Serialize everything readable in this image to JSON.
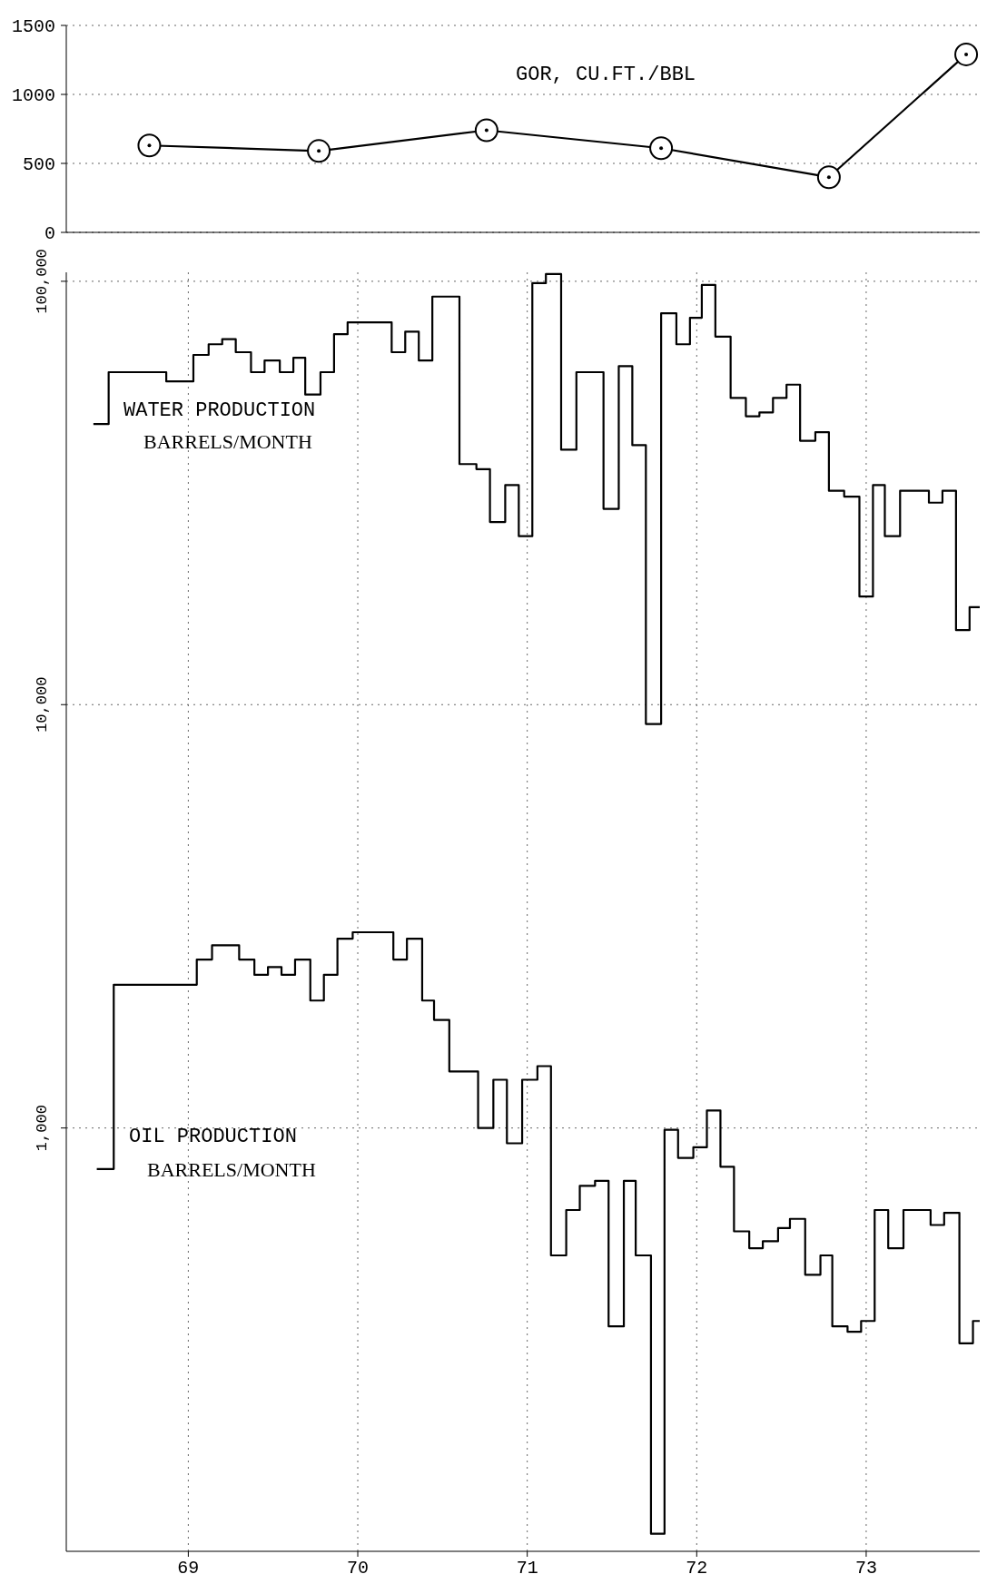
{
  "chart_data": [
    {
      "type": "line",
      "xlim": [
        68.28,
        73.67
      ],
      "xticks": [
        69,
        70,
        71,
        72,
        73
      ],
      "ylim": [
        0,
        1500
      ],
      "yticks": [
        0,
        500,
        1000,
        1500
      ],
      "grid": true,
      "marker": "circle",
      "line_style": "solid",
      "tick_labels": "y",
      "series": [
        {
          "name": "GOR, CU.FT./BBL",
          "color": "#000000",
          "x": [
            68.77,
            69.77,
            70.76,
            71.79,
            72.78,
            73.59
          ],
          "values": [
            630,
            590,
            740,
            610,
            400,
            1290
          ]
        }
      ]
    },
    {
      "type": "step",
      "xlim": [
        68.28,
        73.67
      ],
      "xticks": [
        69,
        70,
        71,
        72,
        73
      ],
      "ylim": [
        100,
        105000
      ],
      "yticks": [
        {
          "value": 1000,
          "label": "1,000"
        },
        {
          "value": 10000,
          "label": "10,000"
        },
        {
          "value": 100000,
          "label": "100,000"
        }
      ],
      "log": true,
      "grid": true,
      "marker": "none",
      "line_style": "solid",
      "annotations": [
        "BARRELS/MONTH",
        "BARRELS/MONTH"
      ],
      "series": [
        {
          "name": "WATER PRODUCTION",
          "color": "#000000",
          "x": [
            68.44,
            68.53,
            68.87,
            69.03,
            69.12,
            69.2,
            69.28,
            69.37,
            69.45,
            69.54,
            69.62,
            69.69,
            69.78,
            69.86,
            69.94,
            70.2,
            70.28,
            70.36,
            70.44,
            70.6,
            70.7,
            70.78,
            70.87,
            70.95,
            71.03,
            71.11,
            71.2,
            71.29,
            71.45,
            71.54,
            71.62,
            71.7,
            71.79,
            71.88,
            71.96,
            72.03,
            72.11,
            72.2,
            72.29,
            72.37,
            72.45,
            72.53,
            72.61,
            72.7,
            72.78,
            72.87,
            72.96,
            73.04,
            73.11,
            73.2,
            73.37,
            73.45,
            73.53,
            73.61,
            73.67
          ],
          "values": [
            46000,
            61000,
            58000,
            67000,
            71000,
            73000,
            68000,
            61000,
            65000,
            61000,
            66000,
            54000,
            61000,
            75000,
            80000,
            68000,
            76000,
            65000,
            92000,
            37000,
            36000,
            27000,
            33000,
            25000,
            99000,
            104000,
            40000,
            61000,
            29000,
            63000,
            41000,
            9000,
            84000,
            71000,
            82000,
            98000,
            74000,
            53000,
            48000,
            49000,
            53000,
            57000,
            42000,
            44000,
            32000,
            31000,
            18000,
            33000,
            25000,
            32000,
            30000,
            32000,
            15000,
            17000,
            17000
          ]
        },
        {
          "name": "OIL PRODUCTION",
          "color": "#000000",
          "x": [
            68.46,
            68.56,
            69.05,
            69.14,
            69.3,
            69.39,
            69.47,
            69.55,
            69.63,
            69.72,
            69.8,
            69.88,
            69.97,
            70.21,
            70.29,
            70.38,
            70.45,
            70.54,
            70.71,
            70.8,
            70.88,
            70.97,
            71.06,
            71.14,
            71.23,
            71.31,
            71.4,
            71.48,
            71.57,
            71.64,
            71.73,
            71.81,
            71.89,
            71.98,
            72.06,
            72.14,
            72.22,
            72.31,
            72.39,
            72.48,
            72.55,
            72.64,
            72.73,
            72.8,
            72.89,
            72.97,
            73.05,
            73.13,
            73.22,
            73.38,
            73.46,
            73.55,
            73.63,
            73.67
          ],
          "values": [
            800,
            2180,
            2500,
            2700,
            2500,
            2300,
            2400,
            2300,
            2500,
            2000,
            2300,
            2800,
            2900,
            2500,
            2800,
            2000,
            1800,
            1360,
            1000,
            1300,
            920,
            1300,
            1400,
            500,
            640,
            730,
            750,
            340,
            750,
            500,
            110,
            990,
            850,
            900,
            1100,
            810,
            570,
            520,
            540,
            580,
            610,
            450,
            500,
            340,
            330,
            350,
            640,
            520,
            640,
            590,
            630,
            310,
            350,
            350
          ]
        }
      ]
    }
  ]
}
